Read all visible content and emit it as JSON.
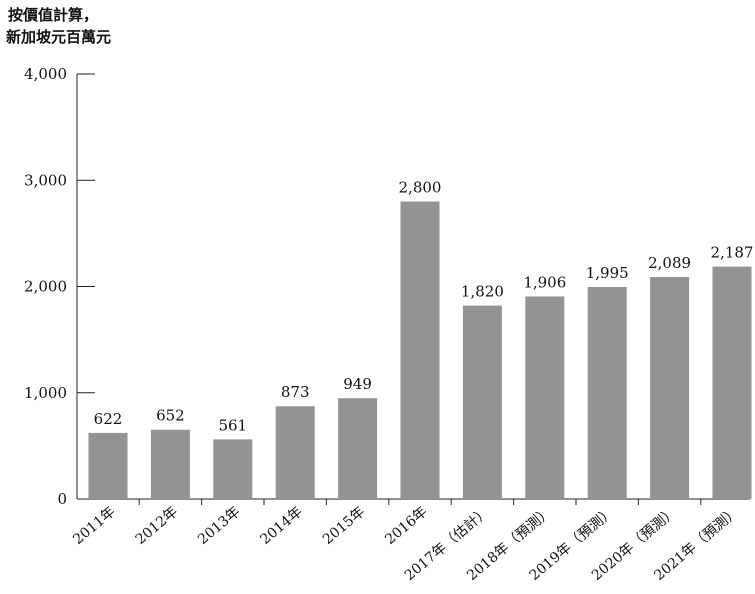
{
  "chart_data": {
    "type": "bar",
    "ylabel_lines": [
      "按價值計算，",
      "新加坡元百萬元"
    ],
    "categories": [
      "2011年",
      "2012年",
      "2013年",
      "2014年",
      "2015年",
      "2016年",
      "2017年（估計）",
      "2018年（預測）",
      "2019年（預測）",
      "2020年（預測）",
      "2021年（預測）"
    ],
    "values": [
      622,
      652,
      561,
      873,
      949,
      2800,
      1820,
      1906,
      1995,
      2089,
      2187
    ],
    "value_labels": [
      "622",
      "652",
      "561",
      "873",
      "949",
      "2,800",
      "1,820",
      "1,906",
      "1,995",
      "2,089",
      "2,187"
    ],
    "ylim": [
      0,
      4000
    ],
    "yticks": [
      0,
      1000,
      2000,
      3000,
      4000
    ],
    "ytick_labels": [
      "0",
      "1,000",
      "2,000",
      "3,000",
      "4,000"
    ],
    "bar_color": "#939393",
    "grid": false
  }
}
